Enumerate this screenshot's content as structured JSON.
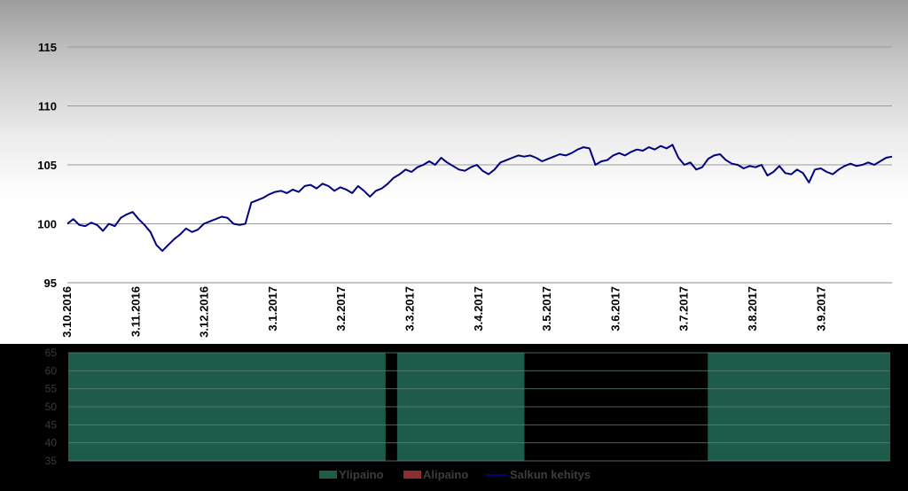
{
  "chart_data": [
    {
      "type": "line",
      "ylim": [
        95,
        115
      ],
      "y_ticks": [
        "95",
        "100",
        "105",
        "110",
        "115"
      ],
      "x_tick_labels": [
        "3.10.2016",
        "3.11.2016",
        "3.12.2016",
        "3.1.2017",
        "3.2.2017",
        "3.3.2017",
        "3.4.2017",
        "3.5.2017",
        "3.6.2017",
        "3.7.2017",
        "3.8.2017",
        "3.9.2017"
      ],
      "grid": true,
      "series": [
        {
          "name": "Salkun kehitys",
          "color": "#000080",
          "points": [
            [
              0,
              100.0
            ],
            [
              1,
              100.4
            ],
            [
              2,
              99.9
            ],
            [
              3,
              99.8
            ],
            [
              4,
              100.1
            ],
            [
              5,
              99.9
            ],
            [
              6,
              99.4
            ],
            [
              7,
              100.0
            ],
            [
              8,
              99.8
            ],
            [
              9,
              100.5
            ],
            [
              10,
              100.8
            ],
            [
              11,
              101.0
            ],
            [
              12,
              100.4
            ],
            [
              13,
              99.9
            ],
            [
              14,
              99.3
            ],
            [
              15,
              98.2
            ],
            [
              16,
              97.7
            ],
            [
              17,
              98.2
            ],
            [
              18,
              98.7
            ],
            [
              19,
              99.1
            ],
            [
              20,
              99.6
            ],
            [
              21,
              99.3
            ],
            [
              22,
              99.5
            ],
            [
              23,
              100.0
            ],
            [
              24,
              100.2
            ],
            [
              25,
              100.4
            ],
            [
              26,
              100.6
            ],
            [
              27,
              100.5
            ],
            [
              28,
              100.0
            ],
            [
              29,
              99.9
            ],
            [
              30,
              100.0
            ],
            [
              31,
              101.8
            ],
            [
              32,
              102.0
            ],
            [
              33,
              102.2
            ],
            [
              34,
              102.5
            ],
            [
              35,
              102.7
            ],
            [
              36,
              102.8
            ],
            [
              37,
              102.6
            ],
            [
              38,
              102.9
            ],
            [
              39,
              102.7
            ],
            [
              40,
              103.2
            ],
            [
              41,
              103.3
            ],
            [
              42,
              103.0
            ],
            [
              43,
              103.4
            ],
            [
              44,
              103.2
            ],
            [
              45,
              102.8
            ],
            [
              46,
              103.1
            ],
            [
              47,
              102.9
            ],
            [
              48,
              102.6
            ],
            [
              49,
              103.2
            ],
            [
              50,
              102.8
            ],
            [
              51,
              102.3
            ],
            [
              52,
              102.8
            ],
            [
              53,
              103.0
            ],
            [
              54,
              103.4
            ],
            [
              55,
              103.9
            ],
            [
              56,
              104.2
            ],
            [
              57,
              104.6
            ],
            [
              58,
              104.4
            ],
            [
              59,
              104.8
            ],
            [
              60,
              105.0
            ],
            [
              61,
              105.3
            ],
            [
              62,
              105.0
            ],
            [
              63,
              105.6
            ],
            [
              64,
              105.2
            ],
            [
              65,
              104.9
            ],
            [
              66,
              104.6
            ],
            [
              67,
              104.5
            ],
            [
              68,
              104.8
            ],
            [
              69,
              105.0
            ],
            [
              70,
              104.5
            ],
            [
              71,
              104.2
            ],
            [
              72,
              104.6
            ],
            [
              73,
              105.2
            ],
            [
              74,
              105.4
            ],
            [
              75,
              105.6
            ],
            [
              76,
              105.8
            ],
            [
              77,
              105.7
            ],
            [
              78,
              105.8
            ],
            [
              79,
              105.6
            ],
            [
              80,
              105.3
            ],
            [
              81,
              105.5
            ],
            [
              82,
              105.7
            ],
            [
              83,
              105.9
            ],
            [
              84,
              105.8
            ],
            [
              85,
              106.0
            ],
            [
              86,
              106.3
            ],
            [
              87,
              106.5
            ],
            [
              88,
              106.4
            ],
            [
              89,
              105.0
            ],
            [
              90,
              105.3
            ],
            [
              91,
              105.4
            ],
            [
              92,
              105.8
            ],
            [
              93,
              106.0
            ],
            [
              94,
              105.8
            ],
            [
              95,
              106.1
            ],
            [
              96,
              106.3
            ],
            [
              97,
              106.2
            ],
            [
              98,
              106.5
            ],
            [
              99,
              106.3
            ],
            [
              100,
              106.6
            ],
            [
              101,
              106.4
            ],
            [
              102,
              106.7
            ],
            [
              103,
              105.6
            ],
            [
              104,
              105.0
            ],
            [
              105,
              105.2
            ],
            [
              106,
              104.6
            ],
            [
              107,
              104.8
            ],
            [
              108,
              105.5
            ],
            [
              109,
              105.8
            ],
            [
              110,
              105.9
            ],
            [
              111,
              105.4
            ],
            [
              112,
              105.1
            ],
            [
              113,
              105.0
            ],
            [
              114,
              104.7
            ],
            [
              115,
              104.9
            ],
            [
              116,
              104.8
            ],
            [
              117,
              105.0
            ],
            [
              118,
              104.1
            ],
            [
              119,
              104.4
            ],
            [
              120,
              104.9
            ],
            [
              121,
              104.3
            ],
            [
              122,
              104.2
            ],
            [
              123,
              104.6
            ],
            [
              124,
              104.3
            ],
            [
              125,
              103.5
            ],
            [
              126,
              104.6
            ],
            [
              127,
              104.7
            ],
            [
              128,
              104.4
            ],
            [
              129,
              104.2
            ],
            [
              130,
              104.6
            ],
            [
              131,
              104.9
            ],
            [
              132,
              105.1
            ],
            [
              133,
              104.9
            ],
            [
              134,
              105.0
            ],
            [
              135,
              105.2
            ],
            [
              136,
              105.0
            ],
            [
              137,
              105.3
            ],
            [
              138,
              105.6
            ],
            [
              139,
              105.7
            ]
          ]
        }
      ]
    },
    {
      "type": "bar",
      "ylim": [
        35,
        65
      ],
      "y_ticks": [
        "35",
        "40",
        "45",
        "50",
        "55",
        "60",
        "65"
      ],
      "legend_position": "bottom",
      "series": [
        {
          "name": "Ylipaino",
          "color": "#1e5b4a"
        },
        {
          "name": "Alipaino",
          "color": "#8b2e2e"
        },
        {
          "name": "Salkun kehitys",
          "color": "#000080"
        }
      ],
      "segments": [
        {
          "series": "Ylipaino",
          "start": 0.0,
          "end": 0.386,
          "value": 65
        },
        {
          "series": "Ylipaino",
          "start": 0.4,
          "end": 0.555,
          "value": 65
        },
        {
          "series": "Ylipaino",
          "start": 0.778,
          "end": 1.0,
          "value": 65
        }
      ]
    }
  ]
}
